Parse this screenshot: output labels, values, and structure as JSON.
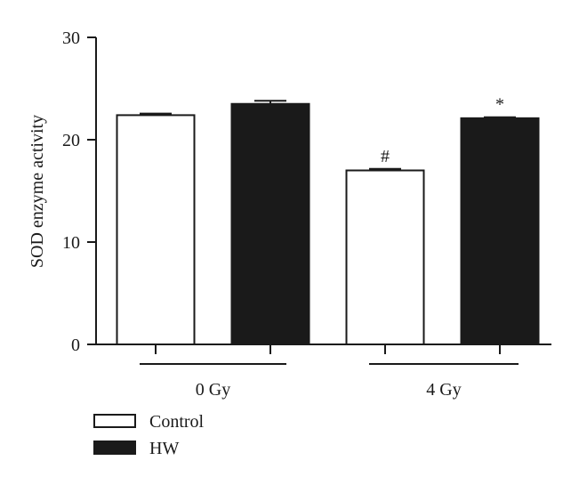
{
  "chart_data": {
    "type": "bar",
    "ylabel": "SOD enzyme activity",
    "ylim": [
      0,
      30
    ],
    "yticks": [
      0,
      10,
      20,
      30
    ],
    "grid": false,
    "groups": [
      "0 Gy",
      "4 Gy"
    ],
    "series": [
      {
        "name": "Control",
        "values": [
          22.4,
          17.0
        ],
        "errors": [
          0.15,
          0.15
        ],
        "color": "#ffffff"
      },
      {
        "name": "HW",
        "values": [
          23.5,
          22.1
        ],
        "errors": [
          0.3,
          0.1
        ],
        "color": "#1a1a1a"
      }
    ],
    "annotations": [
      {
        "group": 1,
        "series": 0,
        "text": "#"
      },
      {
        "group": 1,
        "series": 1,
        "text": "*"
      }
    ],
    "legend_position": "bottom-left"
  }
}
